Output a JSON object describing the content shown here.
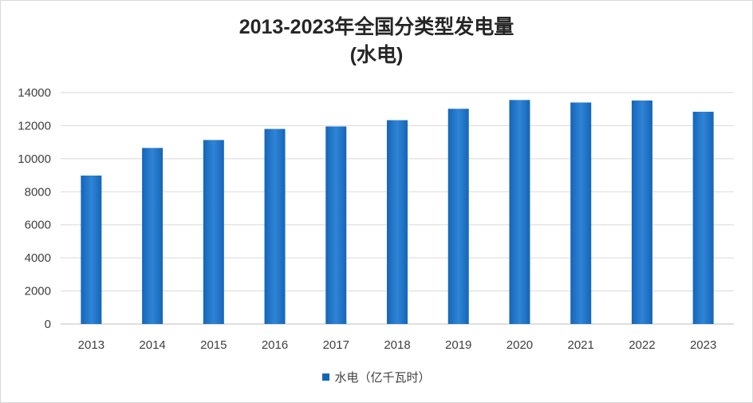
{
  "chart_data": {
    "type": "bar",
    "title": "2013-2023年全国分类型发电量",
    "subtitle": "(水电)",
    "categories": [
      "2013",
      "2014",
      "2015",
      "2016",
      "2017",
      "2018",
      "2019",
      "2020",
      "2021",
      "2022",
      "2023"
    ],
    "series": [
      {
        "name": "水电（亿千瓦时）",
        "values": [
          8980,
          10650,
          11130,
          11800,
          11950,
          12330,
          13020,
          13550,
          13400,
          13520,
          12840
        ]
      }
    ],
    "ylim": [
      0,
      14000
    ],
    "yticks": [
      0,
      2000,
      4000,
      6000,
      8000,
      10000,
      12000,
      14000
    ],
    "grid": true,
    "legend": "bottom",
    "colors": {
      "bar": "#1565b8",
      "bar_light": "#2f84d6",
      "grid": "#d9d9d9",
      "text": "#404040"
    }
  }
}
